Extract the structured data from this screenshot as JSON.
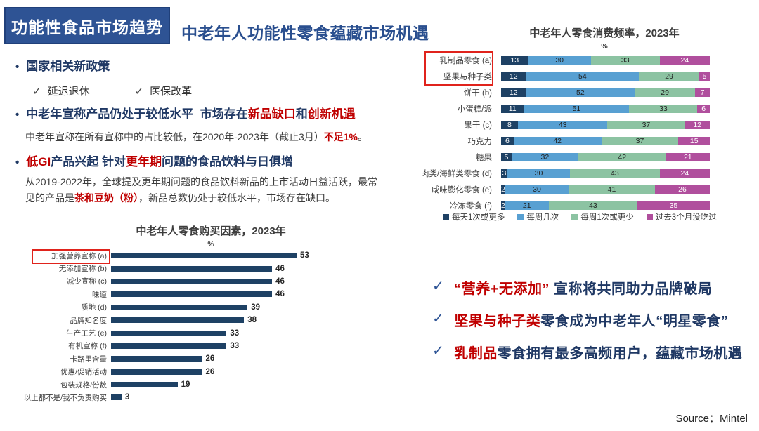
{
  "slide": {
    "badge": "功能性食品市场趋势",
    "heading": "中老年人功能性零食蕴藏市场机遇",
    "source": "Source：Mintel"
  },
  "glyphs": {
    "bullet": "•",
    "check": "✓"
  },
  "left_panel": {
    "bullet1": "国家相关新政策",
    "policy_checks": [
      "延迟退休",
      "医保改革"
    ],
    "bullet2_parts": [
      {
        "text": "中老年宣称产品仍处于较低水平  市场存在",
        "color": "blue"
      },
      {
        "text": "新品缺口",
        "color": "red"
      },
      {
        "text": "和",
        "color": "blue"
      },
      {
        "text": "创新机遇",
        "color": "red"
      }
    ],
    "para1_parts": [
      {
        "text": "中老年宣称在所有宣称中的占比较低，在2020年-2023年（截止3月）",
        "color": "gray"
      },
      {
        "text": "不足1%",
        "color": "red"
      },
      {
        "text": "。",
        "color": "gray"
      }
    ],
    "bullet3_parts": [
      {
        "text": "低GI",
        "color": "red"
      },
      {
        "text": "产品兴起 针对",
        "color": "blue"
      },
      {
        "text": "更年期",
        "color": "red"
      },
      {
        "text": "问题的食品饮料与日俱增",
        "color": "blue"
      }
    ],
    "para2_parts": [
      {
        "text": "从2019-2022年，全球提及更年期问题的食品饮料新品的上市活动日益活跃，最常见的产品是",
        "color": "gray"
      },
      {
        "text": "茶和豆奶（粉）",
        "color": "red"
      },
      {
        "text": "，新品总数仍处于较低水平，市场存在缺口。",
        "color": "gray"
      }
    ]
  },
  "insights": [
    [
      {
        "text": "“营养+无添加”",
        "color": "red"
      },
      {
        "text": " 宣称将共同助力品牌破局",
        "color": "blue"
      }
    ],
    [
      {
        "text": "坚果与种子类",
        "color": "red"
      },
      {
        "text": "零食成为中老年人“明星零食”",
        "color": "blue"
      }
    ],
    [
      {
        "text": "乳制品",
        "color": "red"
      },
      {
        "text": "零食拥有最多高频用户，蕴藏市场机遇",
        "color": "blue"
      }
    ]
  ],
  "chart_data": [
    {
      "type": "bar",
      "subtype": "horizontal-stacked",
      "title": "中老年人零食消费频率，2023年",
      "xlabel": "%",
      "xlim": [
        0,
        100
      ],
      "legend_position": "bottom",
      "categories": [
        "乳制品零食 (a)",
        "坚果与种子类",
        "饼干 (b)",
        "小蛋糕/派",
        "果干 (c)",
        "巧克力",
        "糖果",
        "肉类/海鲜类零食 (d)",
        "咸味膨化零食 (e)",
        "冷冻零食 (f)"
      ],
      "series": [
        {
          "name": "每天1次或更多",
          "color": "#1e4164",
          "values": [
            13,
            12,
            12,
            11,
            8,
            6,
            5,
            3,
            2,
            2
          ]
        },
        {
          "name": "每周几次",
          "color": "#58a0d2",
          "values": [
            30,
            54,
            52,
            51,
            43,
            42,
            32,
            30,
            30,
            21
          ]
        },
        {
          "name": "每周1次或更少",
          "color": "#8cc3a2",
          "values": [
            33,
            29,
            29,
            33,
            37,
            37,
            42,
            43,
            41,
            43
          ]
        },
        {
          "name": "过去3个月没吃过",
          "color": "#b04f9d",
          "values": [
            24,
            5,
            7,
            6,
            12,
            15,
            21,
            24,
            26,
            35
          ]
        }
      ],
      "highlighted_categories": [
        "乳制品零食 (a)",
        "坚果与种子类"
      ]
    },
    {
      "type": "bar",
      "subtype": "horizontal",
      "title": "中老年人零食购买因素，2023年",
      "xlabel": "%",
      "bar_color": "#1e4164",
      "categories": [
        "加强营养宣称 (a)",
        "无添加宣称 (b)",
        "减少宣称 (c)",
        "味道",
        "质地 (d)",
        "品牌知名度",
        "生产工艺 (e)",
        "有机宣称 (f)",
        "卡路里含量",
        "优惠/促销活动",
        "包装规格/份数",
        "以上都不是/我不负责购买"
      ],
      "values": [
        53,
        46,
        46,
        46,
        39,
        38,
        33,
        33,
        26,
        26,
        19,
        3
      ],
      "highlighted_categories": [
        "加强营养宣称 (a)"
      ]
    }
  ]
}
